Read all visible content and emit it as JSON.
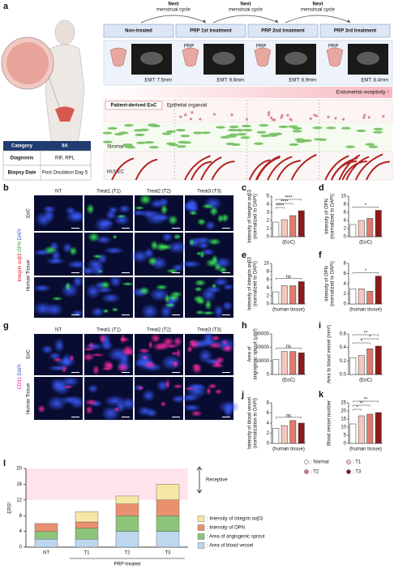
{
  "figure": {
    "panel_labels": [
      "a",
      "b",
      "c",
      "d",
      "e",
      "f",
      "g",
      "h",
      "i",
      "j",
      "k",
      "l"
    ],
    "a": {
      "next_cycle": [
        {
          "bold": "Next",
          "rest": "menstrual cycle"
        },
        {
          "bold": "Next",
          "rest": "menstrual cycle"
        },
        {
          "bold": "Next",
          "rest": "menstrual cycle"
        }
      ],
      "stages": [
        "Non-treated",
        "PRP 1st treatment",
        "PRP 2nd treatment",
        "PRP 3rd treatment"
      ],
      "prp_labels": [
        "PRP",
        "PRP",
        "PRP"
      ],
      "emt": [
        "EMT: 7.5mm",
        "EMT: 9.6mm",
        "EMT: 8.9mm",
        "EMT: 8.4mm"
      ],
      "receptivity": "Endometrial receptivity ↑",
      "layers": {
        "eoc": "Patient-derived EoC",
        "organoid": "Epithelial organoid",
        "stromal": "Stromal cell",
        "huvec": "HUVEC"
      },
      "table": {
        "header": [
          "Category",
          "IIA"
        ],
        "rows": [
          [
            "Diagnosis",
            "RIF, RPL"
          ],
          [
            "Biopsy Date",
            "Post Ovulation Day 5"
          ]
        ]
      }
    },
    "b": {
      "columns": [
        "NT",
        "Treat1 (T1)",
        "Treat2 (T2)",
        "Treat3 (T3)"
      ],
      "rows": [
        "EoC",
        "Human Tissue"
      ],
      "stain": [
        {
          "text": "Integrin αvβ3",
          "color": "#e0201b"
        },
        {
          "text": " OPN",
          "color": "#2a9a2a"
        },
        {
          "text": " DAPI",
          "color": "#2a44c8"
        }
      ]
    },
    "g": {
      "columns": [
        "NT",
        "Treat1 (T1)",
        "Treat2 (T2)",
        "Treat3 (T3)"
      ],
      "rows": [
        "EoC",
        "Human Tissue"
      ],
      "stain": [
        {
          "text": "CD31",
          "color": "#d4148a"
        },
        {
          "text": " DAPI",
          "color": "#2a44c8"
        }
      ]
    },
    "legend": [
      {
        "name": ": Normal",
        "color": "#ffffff"
      },
      {
        "name": ": T1",
        "color": "#f4c7c0"
      },
      {
        "name": ": T2",
        "color": "#e07a6f"
      },
      {
        "name": ": T3",
        "color": "#8b1a1a"
      }
    ]
  },
  "chart_data": [
    {
      "type": "bar",
      "ylabel": [
        "Intensity of Integrin αvβ3",
        "(normalized to DAPI)"
      ],
      "xlabel": "(EoC)",
      "values": [
        1.8,
        2.1,
        2.6,
        3.2
      ],
      "colors": [
        "#ffffff",
        "#f4c7c0",
        "#e07a6f",
        "#8b1a1a"
      ],
      "ylim": [
        0,
        5
      ],
      "yticks": [
        0,
        1,
        2,
        3,
        4,
        5
      ],
      "significance": [
        "****",
        "****",
        "****"
      ]
    },
    {
      "type": "bar",
      "ylabel": [
        "Intensity of OPN",
        "(normalized to DAPI)"
      ],
      "xlabel": "(EoC)",
      "values": [
        3,
        4,
        4.5,
        6.5
      ],
      "colors": [
        "#ffffff",
        "#f4c7c0",
        "#e07a6f",
        "#8b1a1a"
      ],
      "ylim": [
        0,
        10
      ],
      "yticks": [
        0,
        2,
        4,
        6,
        8,
        10
      ],
      "significance": [
        "*"
      ]
    },
    {
      "type": "bar",
      "ylabel": [
        "Intensity of Integrin αvβ3",
        "(normalized to DAPI)"
      ],
      "xlabel": "(human tissue)",
      "values": [
        3,
        4.5,
        4.5,
        5.5
      ],
      "colors": [
        "#ffffff",
        "#f4c7c0",
        "#e07a6f",
        "#8b1a1a"
      ],
      "ylim": [
        0,
        10
      ],
      "yticks": [
        0,
        2,
        4,
        6,
        8,
        10
      ],
      "significance": [
        "ns"
      ]
    },
    {
      "type": "bar",
      "ylabel": [
        "Intensity of OPN",
        "(normalized to DAPI)"
      ],
      "xlabel": "(human tissue)",
      "values": [
        3,
        3,
        2.5,
        5.5
      ],
      "colors": [
        "#ffffff",
        "#f4c7c0",
        "#e07a6f",
        "#8b1a1a"
      ],
      "ylim": [
        0,
        8
      ],
      "yticks": [
        0,
        2,
        4,
        6,
        8
      ],
      "significance": [
        "*"
      ]
    },
    {
      "type": "bar",
      "ylabel": [
        "Area of",
        "angiogenic sprout (μm²)"
      ],
      "xlabel": "(EoC)",
      "values": [
        11000,
        17000,
        17000,
        16000
      ],
      "colors": [
        "#ffffff",
        "#f4c7c0",
        "#e07a6f",
        "#8b1a1a"
      ],
      "ylim": [
        0,
        30000
      ],
      "yticks": [
        0,
        10000,
        20000,
        30000
      ],
      "significance": [
        "ns"
      ]
    },
    {
      "type": "bar",
      "ylabel": [
        "Area to blood vessel (mm²)"
      ],
      "xlabel": "(EoC)",
      "values": [
        0.25,
        0.28,
        0.38,
        0.42
      ],
      "colors": [
        "#ffffff",
        "#f4c7c0",
        "#e07a6f",
        "#8b1a1a"
      ],
      "ylim": [
        0,
        0.6
      ],
      "yticks": [
        {
          "value": 0,
          "label": "0.0"
        },
        {
          "value": 0.2,
          "label": "0.2"
        },
        {
          "value": 0.4,
          "label": "0.4"
        },
        {
          "value": 0.6,
          "label": "0.6"
        }
      ],
      "significance": [
        "*",
        "*",
        "**"
      ]
    },
    {
      "type": "bar",
      "ylabel": [
        "Intensity of blood vessel",
        "(normalization to DAPI)"
      ],
      "xlabel": "(human tissue)",
      "values": [
        3,
        3.5,
        4.5,
        4
      ],
      "colors": [
        "#ffffff",
        "#f4c7c0",
        "#e07a6f",
        "#8b1a1a"
      ],
      "ylim": [
        0,
        8
      ],
      "yticks": [
        0,
        2,
        4,
        6,
        8
      ],
      "significance": [
        "ns"
      ]
    },
    {
      "type": "bar",
      "ylabel": [
        "Blood vessel number"
      ],
      "xlabel": "(human tissue)",
      "values": [
        12,
        17,
        18,
        19
      ],
      "colors": [
        "#ffffff",
        "#f4c7c0",
        "#e07a6f",
        "#8b1a1a"
      ],
      "ylim": [
        0,
        25
      ],
      "yticks": [
        0,
        5,
        10,
        15,
        20,
        25
      ],
      "significance": [
        "*",
        "**",
        "**"
      ]
    },
    {
      "type": "stacked_bar",
      "ylabel": "ERS²",
      "xlabel": "PRP-treated",
      "categories": [
        "NT",
        "T1",
        "T2",
        "T3"
      ],
      "ylim": [
        0,
        20
      ],
      "yticks": [
        0,
        4,
        8,
        12,
        16,
        20
      ],
      "receptive_range": [
        12,
        20
      ],
      "annotation": "Receptive",
      "series": [
        {
          "name": ": Area of blood vessel",
          "color": "#bcd7ee",
          "values": [
            2,
            2,
            4,
            4
          ]
        },
        {
          "name": ": Area of angiogenic sprout",
          "color": "#8cc47a",
          "values": [
            2,
            2.8,
            4,
            4
          ]
        },
        {
          "name": ": Intensity of OPN",
          "color": "#e9906f",
          "values": [
            2,
            1.6,
            3,
            4
          ]
        },
        {
          "name": ": Intensity of Integrin αvβ3",
          "color": "#f6e7a6",
          "values": [
            0,
            2.6,
            2,
            4
          ]
        }
      ]
    }
  ]
}
